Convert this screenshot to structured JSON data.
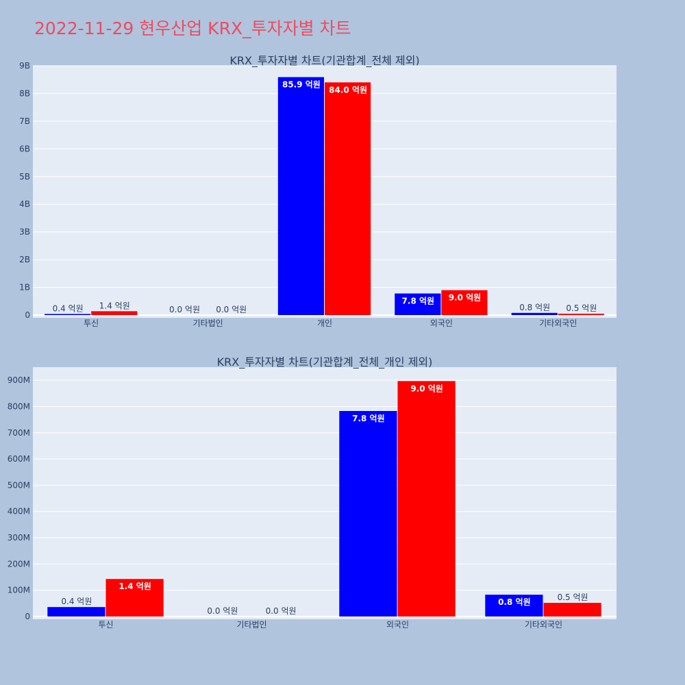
{
  "page_title": "2022-11-29 현우산업 KRX_투자자별 차트",
  "colors": {
    "background": "#b0c4de",
    "plot_bg": "#e5ecf6",
    "title": "#ef4b5e",
    "series_a": "#0000ff",
    "series_b": "#ff0000"
  },
  "chart_data": [
    {
      "type": "bar",
      "title": "KRX_투자자별 차트(기관합계_전체 제외)",
      "categories": [
        "투신",
        "기타법인",
        "개인",
        "외국인",
        "기타외국인"
      ],
      "series": [
        {
          "color": "#0000ff",
          "values": [
            40000000,
            0,
            8590000000,
            780000000,
            80000000
          ],
          "labels": [
            "0.4 억원",
            "0.0 억원",
            "85.9 억원",
            "7.8 억원",
            "0.8 억원"
          ]
        },
        {
          "color": "#ff0000",
          "values": [
            140000000,
            0,
            8400000000,
            900000000,
            50000000
          ],
          "labels": [
            "1.4 억원",
            "0.0 억원",
            "84.0 억원",
            "9.0 억원",
            "0.5 억원"
          ]
        }
      ],
      "ylim": [
        0,
        9000000000
      ],
      "yticks": [
        {
          "value": 0,
          "label": "0"
        },
        {
          "value": 1000000000,
          "label": "1B"
        },
        {
          "value": 2000000000,
          "label": "2B"
        },
        {
          "value": 3000000000,
          "label": "3B"
        },
        {
          "value": 4000000000,
          "label": "4B"
        },
        {
          "value": 5000000000,
          "label": "5B"
        },
        {
          "value": 6000000000,
          "label": "6B"
        },
        {
          "value": 7000000000,
          "label": "7B"
        },
        {
          "value": 8000000000,
          "label": "8B"
        },
        {
          "value": 9000000000,
          "label": "9B"
        }
      ],
      "grid": true
    },
    {
      "type": "bar",
      "title": "KRX_투자자별 차트(기관합계_전체_개인 제외)",
      "categories": [
        "투신",
        "기타법인",
        "외국인",
        "기타외국인"
      ],
      "series": [
        {
          "color": "#0000ff",
          "values": [
            36000000,
            0,
            783000000,
            83000000
          ],
          "labels": [
            "0.4 억원",
            "0.0 억원",
            "7.8 억원",
            "0.8 억원"
          ]
        },
        {
          "color": "#ff0000",
          "values": [
            143000000,
            0,
            897000000,
            52000000
          ],
          "labels": [
            "1.4 억원",
            "0.0 억원",
            "9.0 억원",
            "0.5 억원"
          ]
        }
      ],
      "ylim": [
        0,
        950000000
      ],
      "yticks": [
        {
          "value": 0,
          "label": "0"
        },
        {
          "value": 100000000,
          "label": "100M"
        },
        {
          "value": 200000000,
          "label": "200M"
        },
        {
          "value": 300000000,
          "label": "300M"
        },
        {
          "value": 400000000,
          "label": "400M"
        },
        {
          "value": 500000000,
          "label": "500M"
        },
        {
          "value": 600000000,
          "label": "600M"
        },
        {
          "value": 700000000,
          "label": "700M"
        },
        {
          "value": 800000000,
          "label": "800M"
        },
        {
          "value": 900000000,
          "label": "900M"
        }
      ],
      "grid": true
    }
  ]
}
